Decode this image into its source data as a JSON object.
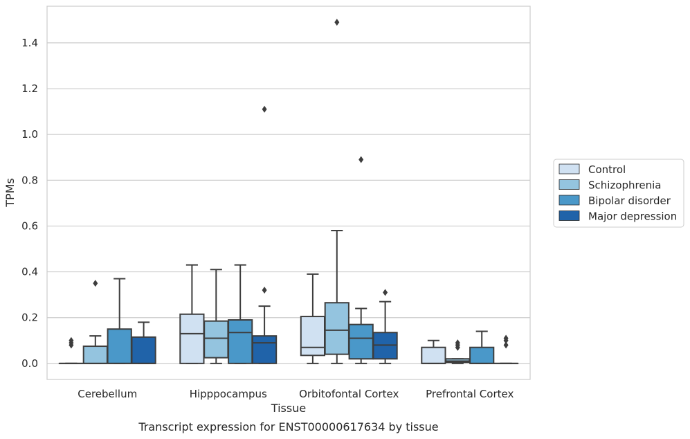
{
  "chart_data": {
    "type": "box",
    "title": "Transcript expression for ENST00000617634 by tissue",
    "xlabel": "Tissue",
    "ylabel": "TPMs",
    "ylim": [
      -0.07,
      1.56
    ],
    "yticks": [
      "0.0",
      "0.2",
      "0.4",
      "0.6",
      "0.8",
      "1.0",
      "1.2",
      "1.4"
    ],
    "ytick_values": [
      0.0,
      0.2,
      0.4,
      0.6,
      0.8,
      1.0,
      1.2,
      1.4
    ],
    "categories": [
      "Cerebellum",
      "Hipppocampus",
      "Orbitofontal Cortex",
      "Prefrontal Cortex"
    ],
    "grid": "horizontal",
    "legend_position": "right",
    "series": [
      {
        "name": "Control",
        "color": "#d0e1f2",
        "boxes": [
          {
            "q1": 0.0,
            "median": 0.0,
            "q3": 0.0,
            "whislo": 0.0,
            "whishi": 0.0,
            "fliers": [
              0.08,
              0.09,
              0.1
            ]
          },
          {
            "q1": 0.0,
            "median": 0.13,
            "q3": 0.215,
            "whislo": 0.0,
            "whishi": 0.43,
            "fliers": []
          },
          {
            "q1": 0.035,
            "median": 0.07,
            "q3": 0.205,
            "whislo": 0.0,
            "whishi": 0.39,
            "fliers": []
          },
          {
            "q1": 0.0,
            "median": 0.0,
            "q3": 0.07,
            "whislo": 0.0,
            "whishi": 0.1,
            "fliers": []
          }
        ]
      },
      {
        "name": "Schizophrenia",
        "color": "#94c4df",
        "boxes": [
          {
            "q1": 0.0,
            "median": 0.0,
            "q3": 0.075,
            "whislo": 0.0,
            "whishi": 0.12,
            "fliers": [
              0.35
            ]
          },
          {
            "q1": 0.025,
            "median": 0.11,
            "q3": 0.185,
            "whislo": 0.0,
            "whishi": 0.41,
            "fliers": []
          },
          {
            "q1": 0.04,
            "median": 0.145,
            "q3": 0.265,
            "whislo": 0.0,
            "whishi": 0.58,
            "fliers": [
              1.49
            ]
          },
          {
            "q1": 0.005,
            "median": 0.01,
            "q3": 0.02,
            "whislo": 0.0,
            "whishi": 0.02,
            "fliers": [
              0.07,
              0.08,
              0.09
            ]
          }
        ]
      },
      {
        "name": "Bipolar disorder",
        "color": "#4a98c9",
        "boxes": [
          {
            "q1": 0.0,
            "median": 0.0,
            "q3": 0.15,
            "whislo": 0.0,
            "whishi": 0.37,
            "fliers": []
          },
          {
            "q1": 0.0,
            "median": 0.135,
            "q3": 0.19,
            "whislo": 0.0,
            "whishi": 0.43,
            "fliers": []
          },
          {
            "q1": 0.02,
            "median": 0.11,
            "q3": 0.17,
            "whislo": 0.0,
            "whishi": 0.24,
            "fliers": [
              0.89
            ]
          },
          {
            "q1": 0.0,
            "median": 0.0,
            "q3": 0.07,
            "whislo": 0.0,
            "whishi": 0.14,
            "fliers": []
          }
        ]
      },
      {
        "name": "Major depression",
        "color": "#2063a9",
        "boxes": [
          {
            "q1": 0.0,
            "median": 0.0,
            "q3": 0.115,
            "whislo": 0.0,
            "whishi": 0.18,
            "fliers": []
          },
          {
            "q1": 0.0,
            "median": 0.09,
            "q3": 0.12,
            "whislo": 0.0,
            "whishi": 0.25,
            "fliers": [
              0.32,
              1.11
            ]
          },
          {
            "q1": 0.02,
            "median": 0.08,
            "q3": 0.135,
            "whislo": 0.0,
            "whishi": 0.27,
            "fliers": [
              0.31
            ]
          },
          {
            "q1": 0.0,
            "median": 0.0,
            "q3": 0.0,
            "whislo": 0.0,
            "whishi": 0.0,
            "fliers": [
              0.08,
              0.1,
              0.11
            ]
          }
        ]
      }
    ]
  }
}
